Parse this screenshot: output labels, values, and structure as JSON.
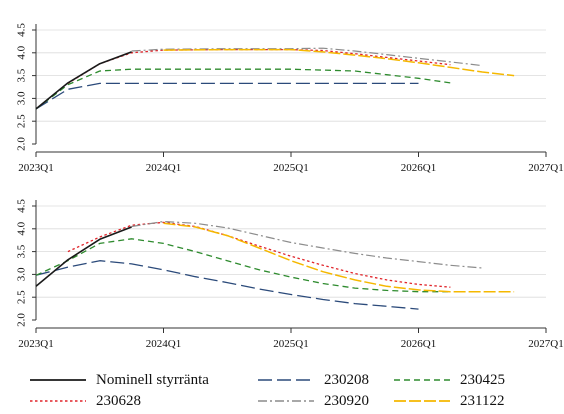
{
  "colors": {
    "nominell": "#1a1a1a",
    "230208": "#2b4a7a",
    "230425": "#2e8b2e",
    "230628": "#e0242a",
    "230920": "#8c8c8c",
    "231122": "#f5b800",
    "grid": "#dcdcdc",
    "axis": "#333333"
  },
  "chart_data": [
    {
      "type": "line",
      "title": "",
      "xlabel": "",
      "ylabel": "",
      "x_ticks": [
        "2023Q1",
        "2024Q1",
        "2025Q1",
        "2026Q1",
        "2027Q1"
      ],
      "y_ticks": [
        "2.0",
        "2.5",
        "3.0",
        "3.5",
        "4.0",
        "4.5"
      ],
      "xlim": [
        2023.0,
        2027.0
      ],
      "ylim": [
        2.0,
        4.5
      ],
      "grid": true,
      "series": [
        {
          "name": "Nominell styrränta",
          "key": "nominell",
          "x": [
            2023.0,
            2023.25,
            2023.5,
            2023.75
          ],
          "y": [
            2.77,
            3.34,
            3.76,
            4.02
          ]
        },
        {
          "name": "230208",
          "key": "230208",
          "x": [
            2023.0,
            2023.25,
            2023.5,
            2023.75,
            2024.0,
            2024.5,
            2025.0,
            2025.5,
            2026.0
          ],
          "y": [
            2.77,
            3.2,
            3.33,
            3.33,
            3.33,
            3.33,
            3.33,
            3.33,
            3.33
          ]
        },
        {
          "name": "230425",
          "key": "230425",
          "x": [
            2023.0,
            2023.25,
            2023.5,
            2023.75,
            2024.0,
            2024.5,
            2025.0,
            2025.5,
            2025.75,
            2026.0,
            2026.25
          ],
          "y": [
            2.77,
            3.3,
            3.6,
            3.64,
            3.64,
            3.64,
            3.64,
            3.6,
            3.52,
            3.44,
            3.34
          ]
        },
        {
          "name": "230628",
          "key": "230628",
          "x": [
            2023.25,
            2023.5,
            2023.75,
            2024.0,
            2024.5,
            2025.0,
            2025.25,
            2025.5,
            2025.75,
            2026.0,
            2026.25
          ],
          "y": [
            3.33,
            3.76,
            4.0,
            4.06,
            4.07,
            4.07,
            4.05,
            3.98,
            3.9,
            3.82,
            3.74
          ]
        },
        {
          "name": "230920",
          "key": "230920",
          "x": [
            2023.75,
            2024.0,
            2024.5,
            2025.0,
            2025.25,
            2025.5,
            2025.75,
            2026.0,
            2026.25,
            2026.5
          ],
          "y": [
            4.04,
            4.08,
            4.09,
            4.09,
            4.1,
            4.04,
            3.96,
            3.88,
            3.8,
            3.72
          ]
        },
        {
          "name": "231122",
          "key": "231122",
          "x": [
            2024.0,
            2024.5,
            2025.0,
            2025.25,
            2025.5,
            2025.75,
            2026.0,
            2026.25,
            2026.5,
            2026.75
          ],
          "y": [
            4.06,
            4.07,
            4.07,
            4.02,
            3.95,
            3.87,
            3.78,
            3.68,
            3.58,
            3.5
          ]
        }
      ]
    },
    {
      "type": "line",
      "title": "",
      "xlabel": "",
      "ylabel": "",
      "x_ticks": [
        "2023Q1",
        "2024Q1",
        "2025Q1",
        "2026Q1",
        "2027Q1"
      ],
      "y_ticks": [
        "2.0",
        "2.5",
        "3.0",
        "3.5",
        "4.0",
        "4.5"
      ],
      "xlim": [
        2023.0,
        2027.0
      ],
      "ylim": [
        2.0,
        4.5
      ],
      "grid": true,
      "series": [
        {
          "name": "Nominell styrränta",
          "key": "nominell",
          "x": [
            2023.0,
            2023.25,
            2023.5,
            2023.75
          ],
          "y": [
            2.74,
            3.32,
            3.77,
            4.04
          ]
        },
        {
          "name": "230208",
          "key": "230208",
          "x": [
            2023.0,
            2023.25,
            2023.5,
            2023.75,
            2024.0,
            2024.25,
            2024.5,
            2024.75,
            2025.0,
            2025.25,
            2025.5,
            2025.75,
            2026.0
          ],
          "y": [
            2.98,
            3.16,
            3.3,
            3.23,
            3.1,
            2.95,
            2.82,
            2.68,
            2.56,
            2.45,
            2.36,
            2.3,
            2.24
          ]
        },
        {
          "name": "230425",
          "key": "230425",
          "x": [
            2023.0,
            2023.25,
            2023.5,
            2023.75,
            2024.0,
            2024.25,
            2024.5,
            2024.75,
            2025.0,
            2025.25,
            2025.5,
            2025.75,
            2026.0,
            2026.25
          ],
          "y": [
            2.98,
            3.3,
            3.68,
            3.78,
            3.68,
            3.5,
            3.3,
            3.1,
            2.94,
            2.8,
            2.7,
            2.65,
            2.62,
            2.62
          ]
        },
        {
          "name": "230628",
          "key": "230628",
          "x": [
            2023.25,
            2023.5,
            2023.75,
            2024.0,
            2024.25,
            2024.5,
            2024.75,
            2025.0,
            2025.25,
            2025.5,
            2025.75,
            2026.0,
            2026.25
          ],
          "y": [
            3.5,
            3.82,
            4.08,
            4.14,
            4.05,
            3.85,
            3.62,
            3.4,
            3.2,
            3.02,
            2.88,
            2.78,
            2.72
          ]
        },
        {
          "name": "230920",
          "key": "230920",
          "x": [
            2023.75,
            2024.0,
            2024.25,
            2024.5,
            2024.75,
            2025.0,
            2025.25,
            2025.5,
            2025.75,
            2026.0,
            2026.25,
            2026.5
          ],
          "y": [
            4.05,
            4.16,
            4.12,
            4.02,
            3.86,
            3.7,
            3.58,
            3.46,
            3.36,
            3.28,
            3.2,
            3.14
          ]
        },
        {
          "name": "231122",
          "key": "231122",
          "x": [
            2024.0,
            2024.25,
            2024.5,
            2024.75,
            2025.0,
            2025.25,
            2025.5,
            2025.75,
            2026.0,
            2026.25,
            2026.5,
            2026.75
          ],
          "y": [
            4.12,
            4.04,
            3.85,
            3.58,
            3.3,
            3.06,
            2.88,
            2.74,
            2.66,
            2.62,
            2.62,
            2.62
          ]
        }
      ]
    }
  ],
  "legend": {
    "placement": "bottom",
    "items": [
      {
        "label": "Nominell styrränta",
        "key": "nominell"
      },
      {
        "label": "230208",
        "key": "230208"
      },
      {
        "label": "230425",
        "key": "230425"
      },
      {
        "label": "230628",
        "key": "230628"
      },
      {
        "label": "230920",
        "key": "230920"
      },
      {
        "label": "231122",
        "key": "231122"
      }
    ]
  }
}
